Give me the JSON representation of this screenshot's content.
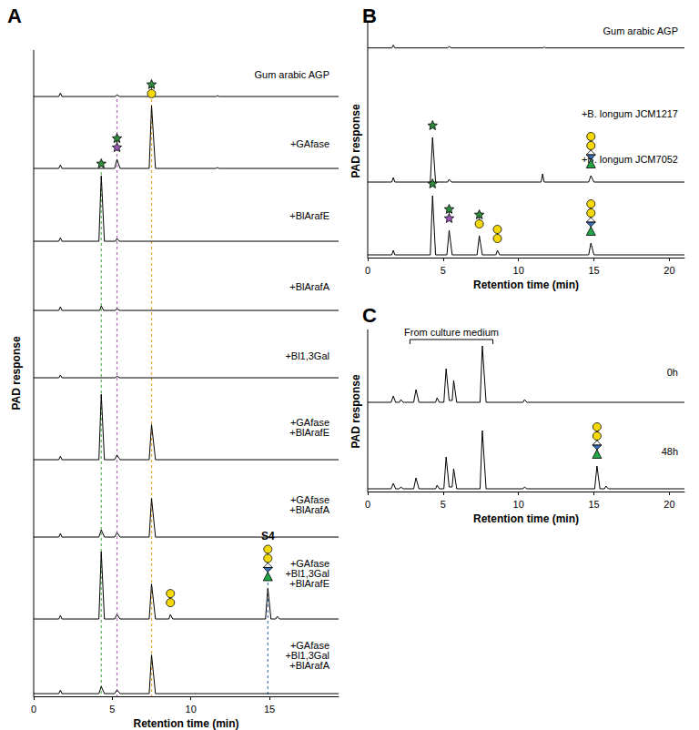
{
  "chart_data": [
    {
      "type": "line",
      "panel": "A",
      "x_label": "Retention time (min)",
      "y_label": "PAD response",
      "xlim": [
        0,
        19.4
      ],
      "xticks": [
        0,
        5,
        10,
        15
      ],
      "ylim": [
        0,
        80
      ],
      "tick_labels": "x",
      "grid": false,
      "color": "#000000",
      "reference_lines": [
        {
          "x": 4.3,
          "color": "#5cb85c"
        },
        {
          "x": 5.3,
          "color": "#b06ab3"
        },
        {
          "x": 7.5,
          "color": "#f0a830"
        },
        {
          "x": 14.9,
          "color": "#4a7fc1"
        }
      ],
      "annotations": [
        {
          "text": "S4",
          "trace": 7,
          "x": 14.9
        }
      ],
      "series": [
        {
          "label": [
            "Gum arabic AGP"
          ],
          "x": [
            0,
            1.6,
            1.7,
            1.8,
            5.2,
            5.3,
            5.45,
            11.6,
            11.7,
            11.8,
            19.4
          ],
          "values": [
            3,
            3,
            7,
            3,
            3,
            5,
            3,
            3,
            4,
            3,
            3
          ]
        },
        {
          "label": [
            "+GAfase"
          ],
          "x": [
            0,
            1.6,
            1.7,
            1.8,
            5.15,
            5.3,
            5.5,
            7.35,
            7.5,
            7.75,
            11.6,
            11.7,
            11.8,
            19.4
          ],
          "values": [
            3,
            3,
            7,
            3,
            3,
            13,
            3,
            3,
            73,
            3,
            3,
            4,
            3,
            3
          ]
        },
        {
          "label": [
            "+BlArafE"
          ],
          "x": [
            0,
            1.6,
            1.7,
            1.8,
            4.15,
            4.3,
            4.5,
            5.2,
            5.3,
            5.45,
            19.4
          ],
          "values": [
            3,
            3,
            7,
            3,
            3,
            76,
            3,
            3,
            6,
            3,
            3
          ]
        },
        {
          "label": [
            "+BlArafA"
          ],
          "x": [
            0,
            1.6,
            1.7,
            1.8,
            4.2,
            4.3,
            4.45,
            5.2,
            5.3,
            5.45,
            19.4
          ],
          "values": [
            3,
            3,
            7,
            3,
            3,
            8,
            3,
            3,
            5,
            3,
            3
          ]
        },
        {
          "label": [
            "+Bl1,3Gal"
          ],
          "x": [
            0,
            1.6,
            1.7,
            1.8,
            5.2,
            5.3,
            5.45,
            19.4
          ],
          "values": [
            3,
            3,
            6,
            3,
            3,
            5,
            3,
            3
          ]
        },
        {
          "label": [
            "+GAfase",
            "+BlArafE"
          ],
          "x": [
            0,
            1.6,
            1.7,
            1.8,
            4.15,
            4.3,
            4.5,
            5.15,
            5.3,
            5.5,
            7.35,
            7.5,
            7.75,
            19.4
          ],
          "values": [
            3,
            3,
            7,
            3,
            3,
            76,
            3,
            3,
            8,
            3,
            3,
            42,
            3,
            3
          ]
        },
        {
          "label": [
            "+GAfase",
            "+BlArafA"
          ],
          "x": [
            0,
            1.6,
            1.7,
            1.8,
            4.15,
            4.3,
            4.5,
            5.15,
            5.3,
            5.5,
            7.35,
            7.5,
            7.75,
            19.4
          ],
          "values": [
            3,
            3,
            7,
            3,
            3,
            11,
            3,
            3,
            8,
            3,
            3,
            46,
            3,
            3
          ]
        },
        {
          "label": [
            "+GAfase",
            "+Bl1,3Gal",
            "+BlArafE"
          ],
          "x": [
            0,
            1.6,
            1.7,
            1.8,
            4.15,
            4.3,
            4.5,
            5.15,
            5.3,
            5.5,
            7.35,
            7.5,
            7.75,
            8.6,
            8.7,
            8.85,
            14.75,
            14.9,
            15.1,
            15.4,
            15.5,
            15.65,
            19.4
          ],
          "values": [
            3,
            3,
            7,
            3,
            3,
            78,
            3,
            3,
            8,
            3,
            3,
            42,
            3,
            3,
            8,
            3,
            3,
            37,
            3,
            3,
            6,
            3,
            3
          ]
        },
        {
          "label": [
            "+GAfase",
            "+Bl1,3Gal",
            "+BlArafA"
          ],
          "x": [
            0,
            1.6,
            1.7,
            1.8,
            4.15,
            4.3,
            4.5,
            5.15,
            5.3,
            5.5,
            7.35,
            7.5,
            7.75,
            19.4
          ],
          "values": [
            3,
            3,
            7,
            3,
            3,
            11,
            3,
            3,
            7,
            3,
            3,
            46,
            3,
            3
          ]
        }
      ]
    },
    {
      "type": "line",
      "panel": "B",
      "x_label": "Retention time (min)",
      "y_label": "PAD response",
      "xlim": [
        0,
        21
      ],
      "xticks": [
        0,
        5,
        10,
        15,
        20
      ],
      "ylim": [
        0,
        70
      ],
      "tick_labels": "x",
      "grid": false,
      "color": "#000000",
      "series": [
        {
          "label": [
            "Gum arabic AGP"
          ],
          "x": [
            0,
            1.6,
            1.7,
            1.8,
            5.3,
            5.4,
            5.55,
            11.6,
            11.7,
            11.8,
            21
          ],
          "values": [
            3,
            3,
            7,
            3,
            3,
            5,
            3,
            3,
            4,
            3,
            3
          ]
        },
        {
          "label": [
            "+B. longum JCM1217"
          ],
          "x": [
            0,
            1.6,
            1.7,
            1.8,
            4.15,
            4.3,
            4.5,
            5.3,
            5.4,
            5.55,
            11.5,
            11.6,
            11.7,
            14.65,
            14.8,
            15.0,
            21
          ],
          "values": [
            3,
            3,
            8,
            3,
            3,
            52,
            3,
            3,
            6,
            3,
            3,
            12,
            3,
            3,
            10,
            3,
            3
          ]
        },
        {
          "label": [
            "+B. longum JCM7052"
          ],
          "x": [
            0,
            1.6,
            1.7,
            1.8,
            4.15,
            4.3,
            4.5,
            5.25,
            5.4,
            5.6,
            7.25,
            7.4,
            7.6,
            8.5,
            8.6,
            8.75,
            14.65,
            14.8,
            15.0,
            21
          ],
          "values": [
            3,
            3,
            8,
            3,
            3,
            68,
            3,
            3,
            30,
            3,
            3,
            24,
            3,
            3,
            8,
            3,
            3,
            16,
            3,
            3
          ]
        }
      ]
    },
    {
      "type": "line",
      "panel": "C",
      "x_label": "Retention time (min)",
      "y_label": "PAD response",
      "xlim": [
        0,
        21
      ],
      "xticks": [
        0,
        5,
        10,
        15,
        20
      ],
      "ylim": [
        0,
        75
      ],
      "tick_labels": "x",
      "grid": false,
      "color": "#000000",
      "annotations": [
        {
          "text": "From culture medium",
          "trace": 0,
          "x": [
            2.8,
            8.3
          ]
        }
      ],
      "series": [
        {
          "label": [
            "0h"
          ],
          "x": [
            0,
            1.55,
            1.7,
            1.85,
            2.1,
            2.2,
            2.35,
            3.05,
            3.2,
            3.4,
            4.5,
            4.6,
            4.75,
            5.05,
            5.2,
            5.4,
            5.6,
            5.7,
            5.9,
            7.45,
            7.6,
            7.85,
            10.3,
            10.4,
            10.55,
            21
          ],
          "values": [
            3,
            3,
            10,
            3,
            3,
            6,
            3,
            3,
            17,
            3,
            3,
            8,
            3,
            3,
            40,
            5,
            5,
            27,
            3,
            3,
            65,
            3,
            3,
            6,
            3,
            3
          ]
        },
        {
          "label": [
            "48h"
          ],
          "x": [
            0,
            1.55,
            1.7,
            1.85,
            2.1,
            2.2,
            2.35,
            3.05,
            3.2,
            3.4,
            4.5,
            4.6,
            4.75,
            5.05,
            5.2,
            5.4,
            5.6,
            5.7,
            5.9,
            7.45,
            7.6,
            7.85,
            10.3,
            10.4,
            10.55,
            15.05,
            15.2,
            15.4,
            15.7,
            15.8,
            15.95,
            21
          ],
          "values": [
            3,
            3,
            9,
            3,
            3,
            5,
            3,
            3,
            15,
            3,
            3,
            7,
            3,
            3,
            38,
            5,
            5,
            25,
            3,
            3,
            67,
            3,
            3,
            5,
            3,
            3,
            28,
            3,
            3,
            6,
            3,
            3
          ]
        }
      ]
    }
  ]
}
